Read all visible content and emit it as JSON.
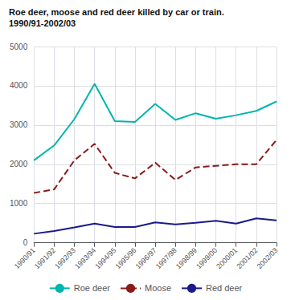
{
  "chart_data": {
    "type": "line",
    "title": "Roe deer, moose and red deer killed by car or train.",
    "subtitle": "1990/91-2002/03",
    "categories": [
      "1990/91",
      "1991/92",
      "1992/93",
      "1993/94",
      "1994/95",
      "1995/96",
      "1996/97",
      "1997/98",
      "1998/99",
      "1999/00",
      "2000/01",
      "2001/02",
      "2002/03"
    ],
    "series": [
      {
        "name": "Roe deer",
        "color": "#00b5ad",
        "line_style": "solid",
        "values": [
          2100,
          2480,
          3150,
          4050,
          3100,
          3080,
          3540,
          3130,
          3300,
          3160,
          3250,
          3360,
          3600
        ]
      },
      {
        "name": "Moose",
        "color": "#8b1a1a",
        "line_style": "dashed",
        "values": [
          1270,
          1360,
          2100,
          2520,
          1780,
          1640,
          2040,
          1600,
          1920,
          1960,
          2000,
          2000,
          2620
        ]
      },
      {
        "name": "Red deer",
        "color": "#1a1a8b",
        "line_style": "solid",
        "values": [
          230,
          300,
          390,
          490,
          400,
          400,
          520,
          470,
          510,
          560,
          490,
          620,
          570
        ]
      }
    ],
    "ylim": [
      0,
      5000
    ],
    "yticks": [
      0,
      1000,
      2000,
      3000,
      4000,
      5000
    ],
    "grid": true,
    "legend": "bottom"
  }
}
